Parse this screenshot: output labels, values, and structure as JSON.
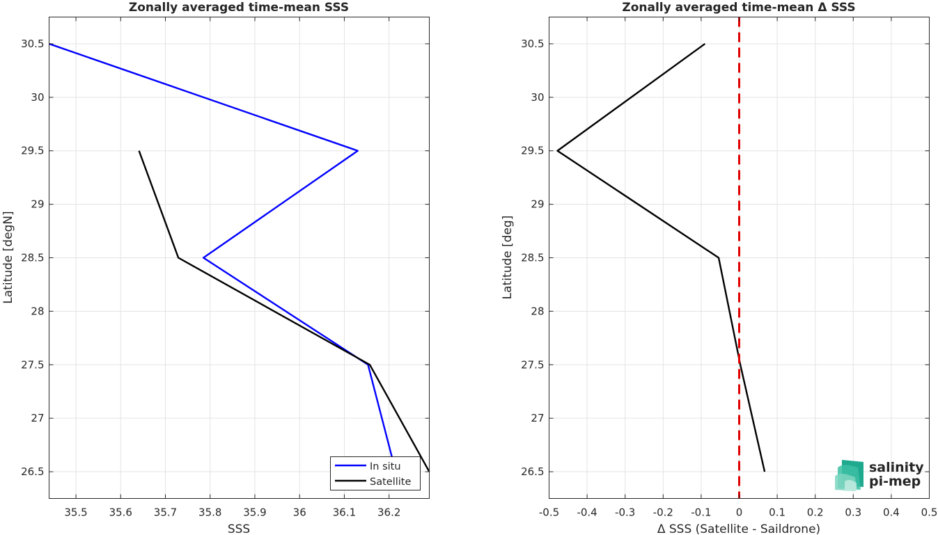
{
  "colors": {
    "insitu": "#0000ff",
    "satellite": "#000000",
    "zero_line": "#e00000",
    "grid": "#e3e3e3",
    "axis": "#262626",
    "logo_text": "#17a58c",
    "logo_text_dark": "#12705f",
    "logo_mark": "#1fa98f"
  },
  "logo": {
    "line1": "salinity",
    "line2": "pi-mep"
  },
  "chart_data": [
    {
      "type": "line",
      "title": "Zonally averaged time-mean SSS",
      "xlabel": "SSS",
      "ylabel": "Latitude [degN]",
      "xlim": [
        35.44,
        36.29
      ],
      "ylim": [
        26.25,
        30.75
      ],
      "xticks": [
        "35.5",
        "35.6",
        "35.7",
        "35.8",
        "35.9",
        "36",
        "36.1",
        "36.2"
      ],
      "yticks": [
        "26.5",
        "27",
        "27.5",
        "28",
        "28.5",
        "29",
        "29.5",
        "30",
        "30.5"
      ],
      "grid": true,
      "legend_position": "bottom-right",
      "series": [
        {
          "name": "In situ",
          "color_key": "insitu",
          "points": [
            {
              "x": 35.44,
              "y": 30.5
            },
            {
              "x": 36.13,
              "y": 29.5
            },
            {
              "x": 35.785,
              "y": 28.5
            },
            {
              "x": 36.153,
              "y": 27.5
            },
            {
              "x": 36.215,
              "y": 26.5
            }
          ]
        },
        {
          "name": "Satellite",
          "color_key": "satellite",
          "points": [
            {
              "x": 35.641,
              "y": 29.5
            },
            {
              "x": 35.729,
              "y": 28.5
            },
            {
              "x": 36.157,
              "y": 27.5
            },
            {
              "x": 36.29,
              "y": 26.5
            }
          ]
        }
      ]
    },
    {
      "type": "line",
      "title": "Zonally averaged time-mean Δ SSS",
      "xlabel": "Δ SSS (Satellite - Saildrone)",
      "ylabel": "Latitude [deg]",
      "xlim": [
        -0.5,
        0.5
      ],
      "ylim": [
        26.25,
        30.75
      ],
      "xticks": [
        "-0.5",
        "-0.4",
        "-0.3",
        "-0.2",
        "-0.1",
        "0",
        "0.1",
        "0.2",
        "0.3",
        "0.4",
        "0.5"
      ],
      "yticks": [
        "26.5",
        "27",
        "27.5",
        "28",
        "28.5",
        "29",
        "29.5",
        "30",
        "30.5"
      ],
      "grid": true,
      "reference_line": {
        "x": 0,
        "style": "dashed",
        "color_key": "zero_line"
      },
      "series": [
        {
          "color_key": "satellite",
          "points": [
            {
              "x": -0.09,
              "y": 30.5
            },
            {
              "x": -0.478,
              "y": 29.5
            },
            {
              "x": -0.054,
              "y": 28.5
            },
            {
              "x": 0.003,
              "y": 27.5
            },
            {
              "x": 0.067,
              "y": 26.5
            }
          ]
        }
      ]
    }
  ]
}
